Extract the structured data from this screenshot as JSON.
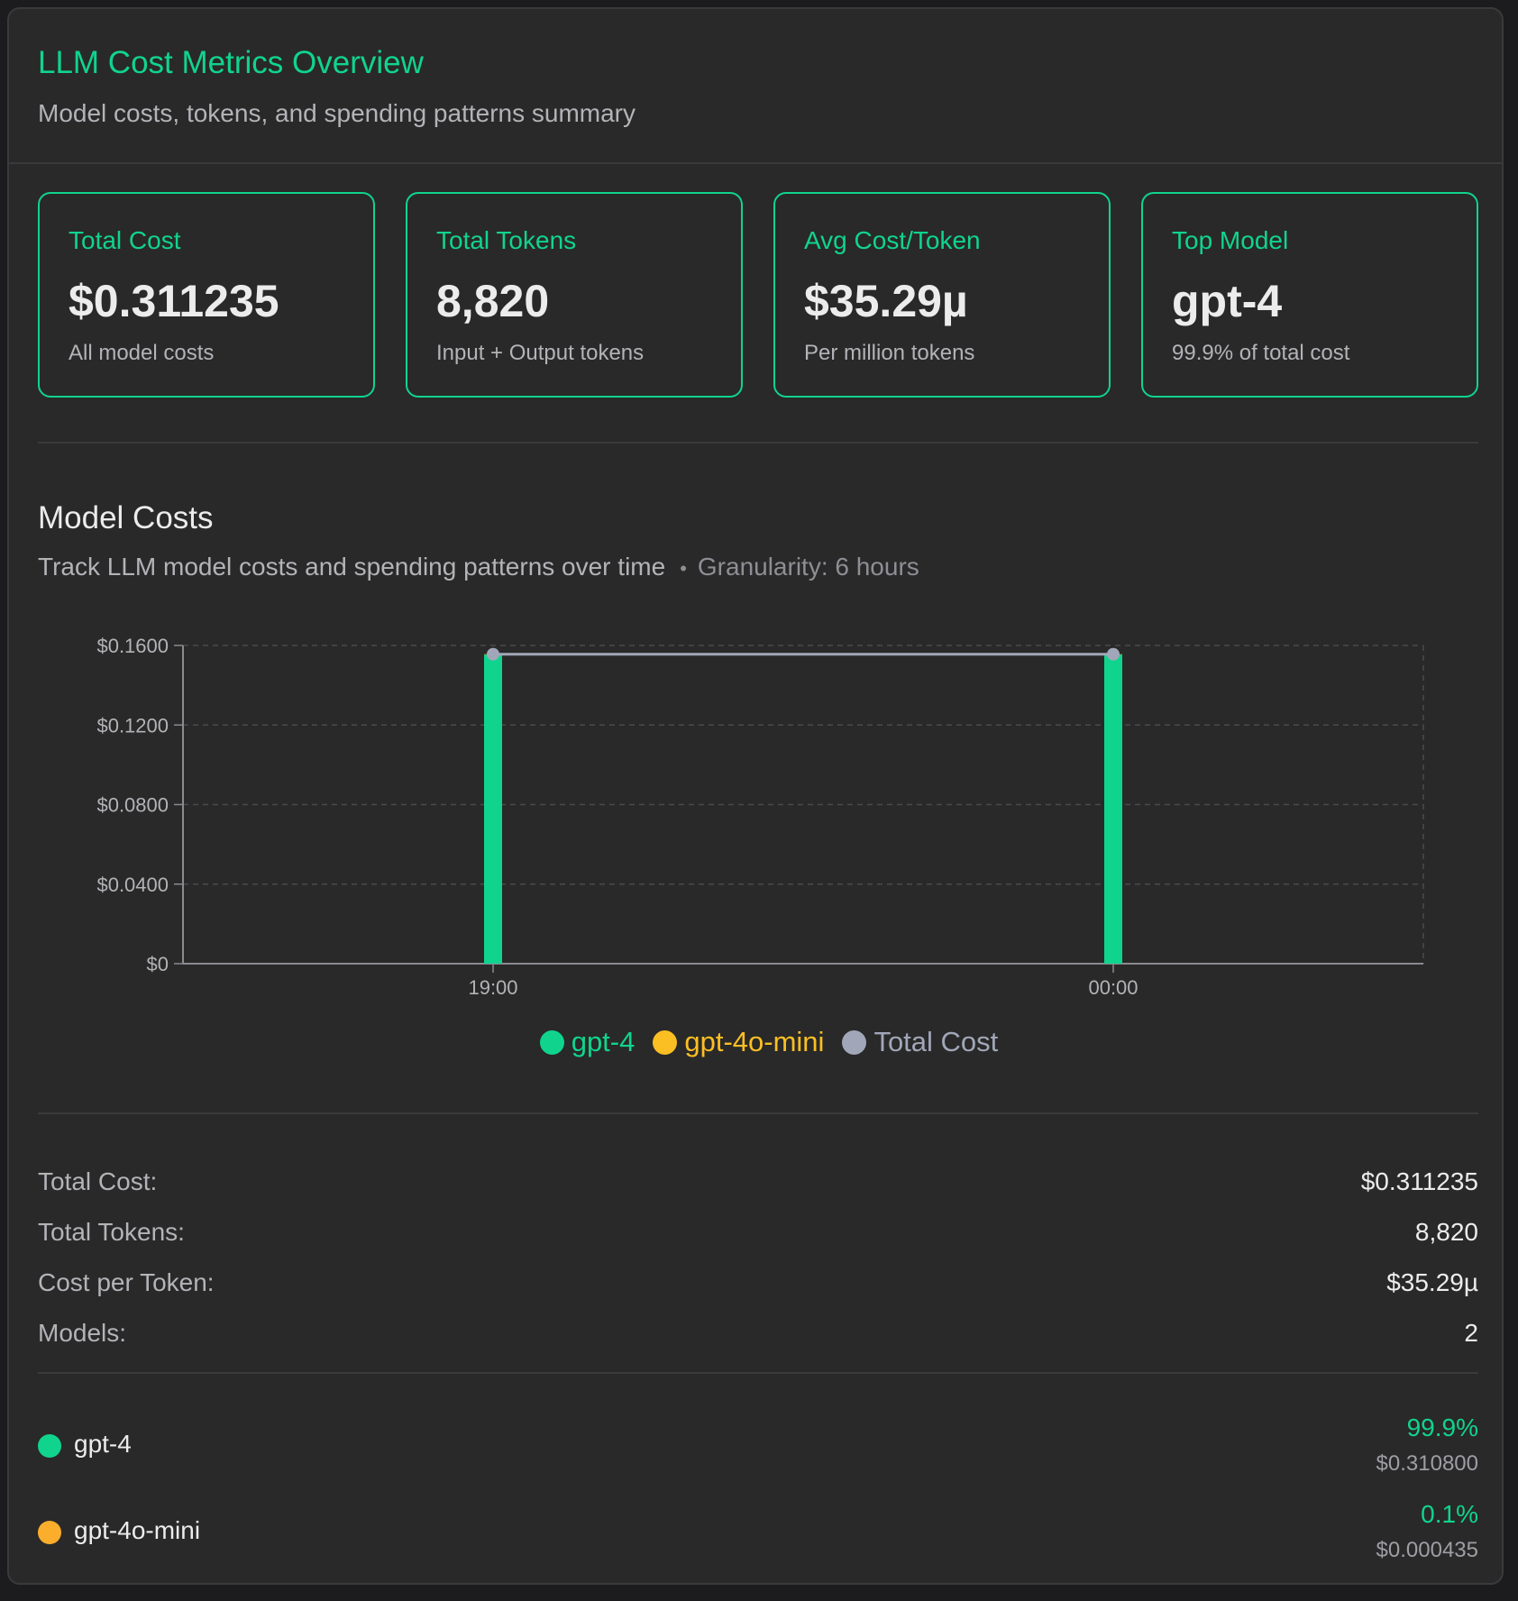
{
  "header": {
    "title": "LLM Cost Metrics Overview",
    "subtitle": "Model costs, tokens, and spending patterns summary"
  },
  "cards": [
    {
      "label": "Total Cost",
      "value": "$0.311235",
      "sub": "All model costs"
    },
    {
      "label": "Total Tokens",
      "value": "8,820",
      "sub": "Input + Output tokens"
    },
    {
      "label": "Avg Cost/Token",
      "value": "$35.29µ",
      "sub": "Per million tokens"
    },
    {
      "label": "Top Model",
      "value": "gpt-4",
      "sub": "99.9% of total cost"
    }
  ],
  "section": {
    "title": "Model Costs",
    "description": "Track LLM model costs and spending patterns over time",
    "bullet": "•",
    "granularity": "Granularity: 6 hours"
  },
  "chart_data": {
    "type": "bar",
    "categories": [
      "19:00",
      "00:00"
    ],
    "series": [
      {
        "name": "gpt-4",
        "color": "#10d48e",
        "values": [
          0.1554,
          0.1554
        ]
      },
      {
        "name": "gpt-4o-mini",
        "color": "#fbbf24",
        "values": [
          0.0002,
          0.0002
        ]
      },
      {
        "name": "Total Cost",
        "color": "#a1a7b8",
        "type": "line",
        "values": [
          0.1556,
          0.1556
        ]
      }
    ],
    "yticks": [
      "$0",
      "$0.0400",
      "$0.0800",
      "$0.1200",
      "$0.1600"
    ],
    "ylim": [
      0,
      0.16
    ],
    "grid": true,
    "legend_position": "bottom"
  },
  "stats": [
    {
      "label": "Total Cost:",
      "value": "$0.311235"
    },
    {
      "label": "Total Tokens:",
      "value": "8,820"
    },
    {
      "label": "Cost per Token:",
      "value": "$35.29µ"
    },
    {
      "label": "Models:",
      "value": "2"
    }
  ],
  "models": [
    {
      "name": "gpt-4",
      "color": "#10d48e",
      "pct": "99.9%",
      "cost": "$0.310800"
    },
    {
      "name": "gpt-4o-mini",
      "color": "#fbad2c",
      "pct": "0.1%",
      "cost": "$0.000435"
    }
  ]
}
